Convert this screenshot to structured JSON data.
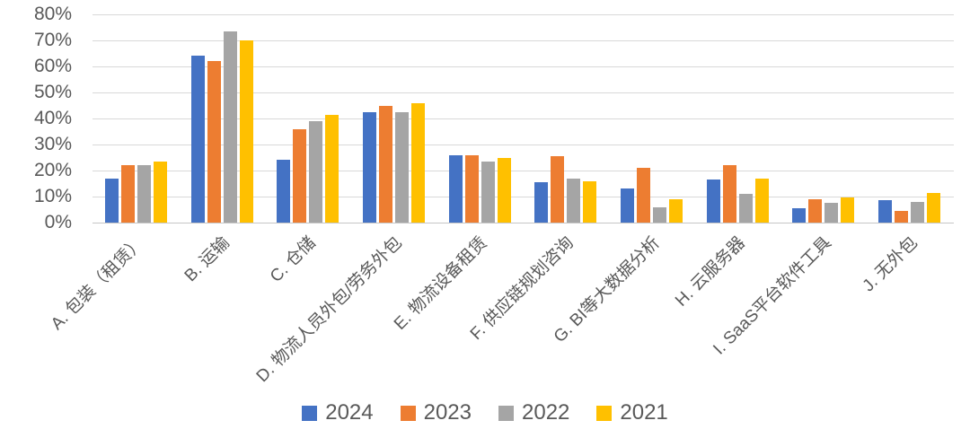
{
  "chart_data": {
    "type": "bar",
    "title": "",
    "xlabel": "",
    "ylabel": "",
    "ylim": [
      0,
      80
    ],
    "ytick_step": 10,
    "yticks": [
      "0%",
      "10%",
      "20%",
      "30%",
      "40%",
      "50%",
      "60%",
      "70%",
      "80%"
    ],
    "grid": true,
    "legend_position": "bottom",
    "categories": [
      "A. 包装（租赁）",
      "B. 运输",
      "C. 仓储",
      "D. 物流人员外包/劳务外包",
      "E. 物流设备租赁",
      "F. 供应链规划咨询",
      "G. BI等大数据分析",
      "H. 云服务器",
      "I. SaaS平台软件工具",
      "J. 无外包"
    ],
    "series": [
      {
        "name": "2024",
        "color": "#4472C4",
        "values": [
          17,
          64,
          24,
          42.5,
          26,
          15.5,
          13,
          16.5,
          5.5,
          8.5
        ]
      },
      {
        "name": "2023",
        "color": "#ED7D31",
        "values": [
          22,
          62,
          36,
          45,
          26,
          25.5,
          21,
          22,
          9,
          4.5
        ]
      },
      {
        "name": "2022",
        "color": "#A5A5A5",
        "values": [
          22,
          73.5,
          39,
          42.5,
          23.5,
          17,
          6,
          11,
          7.5,
          8
        ]
      },
      {
        "name": "2021",
        "color": "#FFC000",
        "values": [
          23.5,
          70,
          41.5,
          46,
          25,
          16,
          9,
          17,
          9.5,
          11.5
        ]
      }
    ],
    "style": {
      "grid_color": "#d9d9d9",
      "axis_line_color": "#c6c6c6",
      "tick_label_color": "#595959"
    }
  }
}
